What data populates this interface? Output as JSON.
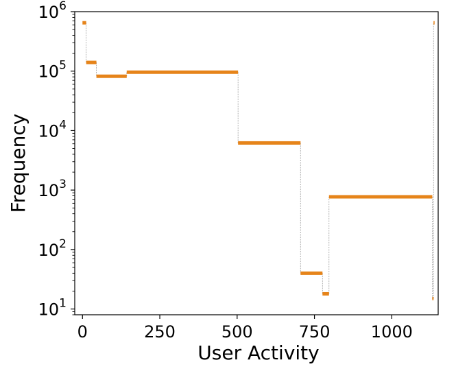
{
  "chart_data": {
    "type": "line",
    "title": "",
    "xlabel": "User Activity",
    "ylabel": "Frequency",
    "xlim": [
      -25,
      1150
    ],
    "ylim": [
      8,
      1000000
    ],
    "yscale": "log",
    "grid": false,
    "x_ticks": [
      0,
      250,
      500,
      750,
      1000
    ],
    "x_tick_labels": [
      "0",
      "250",
      "500",
      "750",
      "1000"
    ],
    "y_ticks": [
      10,
      100,
      1000,
      10000,
      100000,
      1000000
    ],
    "y_tick_labels": [
      {
        "base": "10",
        "exp": "1"
      },
      {
        "base": "10",
        "exp": "2"
      },
      {
        "base": "10",
        "exp": "3"
      },
      {
        "base": "10",
        "exp": "4"
      },
      {
        "base": "10",
        "exp": "5"
      },
      {
        "base": "10",
        "exp": "6"
      }
    ],
    "series_color": "#e6841a",
    "connector_color": "#9e9e9e",
    "segments": [
      {
        "x_start": 0,
        "x_end": 12,
        "value": 650000
      },
      {
        "x_start": 12,
        "x_end": 45,
        "value": 140000
      },
      {
        "x_start": 45,
        "x_end": 143,
        "value": 82000
      },
      {
        "x_start": 143,
        "x_end": 503,
        "value": 96000
      },
      {
        "x_start": 503,
        "x_end": 705,
        "value": 6200
      },
      {
        "x_start": 705,
        "x_end": 776,
        "value": 40
      },
      {
        "x_start": 776,
        "x_end": 797,
        "value": 18
      },
      {
        "x_start": 797,
        "x_end": 1131,
        "value": 770
      },
      {
        "x_start": 1131,
        "x_end": 1135,
        "value": 15
      },
      {
        "x_start": 1135,
        "x_end": 1136,
        "value": 650000
      }
    ]
  }
}
